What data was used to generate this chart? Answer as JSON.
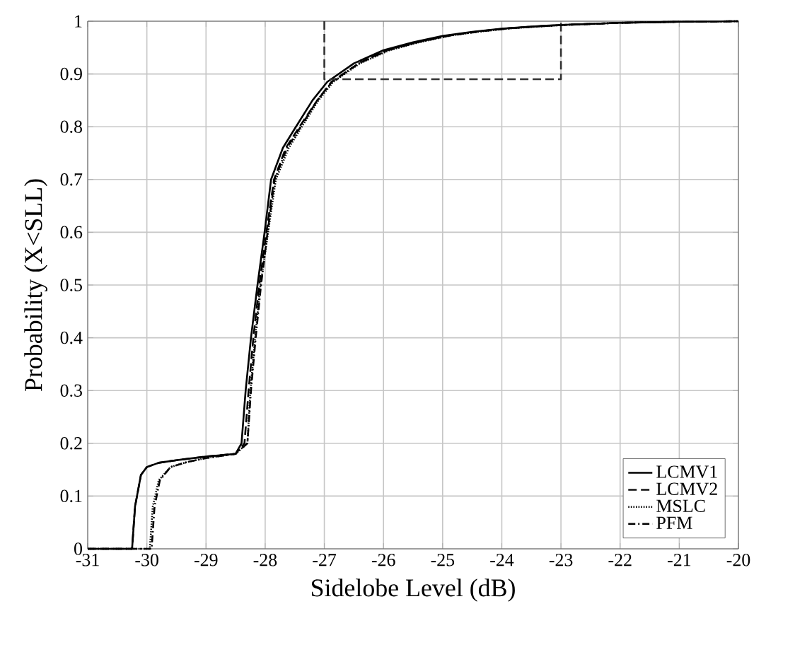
{
  "chart_data": {
    "type": "line",
    "xlabel": "Sidelobe Level (dB)",
    "ylabel": "Probability (X<SLL)",
    "xlim": [
      -31,
      -20
    ],
    "xticks": [
      -31,
      -30,
      -29,
      -28,
      -27,
      -26,
      -25,
      -24,
      -23,
      -22,
      -21,
      -20
    ],
    "ylim": [
      0,
      1
    ],
    "yticks": [
      0,
      0.1,
      0.2,
      0.3,
      0.4,
      0.5,
      0.6,
      0.7,
      0.8,
      0.9,
      1
    ],
    "grid": true,
    "legend": "bottom right",
    "marker": "none",
    "series": [
      {
        "name": "LCMV1",
        "color": "#000000",
        "line_style": "solid",
        "x": [
          -31,
          -30.25,
          -30.2,
          -30.1,
          -30.0,
          -29.8,
          -29.5,
          -29.0,
          -28.5,
          -28.4,
          -28.33,
          -28.24,
          -28.13,
          -28.01,
          -27.9,
          -27.7,
          -27.48,
          -27.2,
          -26.95,
          -26.5,
          -26,
          -25.5,
          -25,
          -24.5,
          -24,
          -23.5,
          -23,
          -22,
          -21,
          -20
        ],
        "values": [
          0,
          0,
          0.08,
          0.14,
          0.155,
          0.163,
          0.168,
          0.175,
          0.18,
          0.2,
          0.3,
          0.4,
          0.5,
          0.6,
          0.7,
          0.76,
          0.8,
          0.85,
          0.885,
          0.92,
          0.945,
          0.96,
          0.972,
          0.98,
          0.986,
          0.99,
          0.993,
          0.997,
          0.999,
          1
        ]
      },
      {
        "name": "LCMV2",
        "color": "#000000",
        "line_style": "dashed",
        "x": [
          -31,
          -30.25,
          -30.2,
          -30.1,
          -30.0,
          -29.8,
          -29.5,
          -29.0,
          -28.5,
          -28.35,
          -28.28,
          -28.2,
          -28.1,
          -27.98,
          -27.85,
          -27.65,
          -27.42,
          -27.12,
          -26.88,
          -26.42,
          -25.95,
          -25.45,
          -24.95,
          -24.45,
          -23.95,
          -23.45,
          -22.95,
          -22,
          -21,
          -20
        ],
        "values": [
          0,
          0,
          0.08,
          0.14,
          0.155,
          0.163,
          0.168,
          0.175,
          0.18,
          0.2,
          0.3,
          0.4,
          0.5,
          0.6,
          0.7,
          0.76,
          0.8,
          0.85,
          0.885,
          0.92,
          0.945,
          0.96,
          0.972,
          0.98,
          0.986,
          0.99,
          0.993,
          0.997,
          0.999,
          1
        ]
      },
      {
        "name": "MSLC",
        "color": "#000000",
        "line_style": "dotted",
        "x": [
          -31,
          -29.95,
          -29.9,
          -29.8,
          -29.6,
          -29.3,
          -29.0,
          -28.5,
          -28.3,
          -28.25,
          -28.17,
          -28.08,
          -27.95,
          -27.82,
          -27.6,
          -27.38,
          -27.1,
          -26.85,
          -26.4,
          -25.9,
          -25.4,
          -24.9,
          -24.4,
          -23.9,
          -23.4,
          -22.9,
          -22,
          -21,
          -20
        ],
        "values": [
          0,
          0,
          0.08,
          0.13,
          0.155,
          0.165,
          0.172,
          0.18,
          0.2,
          0.3,
          0.4,
          0.5,
          0.6,
          0.7,
          0.76,
          0.8,
          0.85,
          0.885,
          0.92,
          0.945,
          0.96,
          0.972,
          0.98,
          0.986,
          0.99,
          0.993,
          0.997,
          0.999,
          1
        ]
      },
      {
        "type": "line",
        "color": "#333333",
        "line_style": "dashed",
        "x": [
          -27,
          -27,
          -23,
          -23
        ],
        "values": [
          1,
          0.89,
          0.89,
          1
        ]
      },
      {
        "name": "PFM",
        "color": "#000000",
        "line_style": "dashdot",
        "x": [
          -31,
          -29.92,
          -29.87,
          -29.78,
          -29.6,
          -29.3,
          -29.0,
          -28.5,
          -28.3,
          -28.24,
          -28.16,
          -28.07,
          -27.96,
          -27.84,
          -27.63,
          -27.4,
          -27.12,
          -26.87,
          -26.42,
          -25.92,
          -25.42,
          -24.92,
          -24.42,
          -23.92,
          -23.42,
          -22.92,
          -22,
          -21,
          -20
        ],
        "values": [
          0,
          0,
          0.08,
          0.13,
          0.155,
          0.165,
          0.172,
          0.18,
          0.2,
          0.3,
          0.4,
          0.5,
          0.6,
          0.7,
          0.76,
          0.8,
          0.85,
          0.885,
          0.92,
          0.945,
          0.96,
          0.972,
          0.98,
          0.986,
          0.99,
          0.993,
          0.997,
          0.999,
          1
        ]
      }
    ]
  }
}
